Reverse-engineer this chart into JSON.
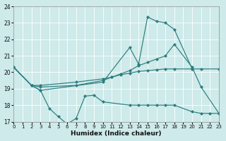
{
  "xlabel": "Humidex (Indice chaleur)",
  "xlim": [
    0,
    23
  ],
  "ylim": [
    17,
    24
  ],
  "yticks": [
    17,
    18,
    19,
    20,
    21,
    22,
    23,
    24
  ],
  "xticks": [
    0,
    1,
    2,
    3,
    4,
    5,
    6,
    7,
    8,
    9,
    10,
    11,
    12,
    13,
    14,
    15,
    16,
    17,
    18,
    19,
    20,
    21,
    22,
    23
  ],
  "bg_color": "#ceeaea",
  "line_color": "#2d7d7d",
  "series": [
    {
      "x": [
        0,
        2,
        3,
        10,
        13,
        14,
        15,
        16,
        17,
        18,
        20
      ],
      "y": [
        20.3,
        19.2,
        18.9,
        19.4,
        21.5,
        20.5,
        23.35,
        23.1,
        23.0,
        22.6,
        20.2
      ]
    },
    {
      "x": [
        0,
        2,
        3,
        7,
        10,
        11,
        12,
        13,
        14,
        15,
        16,
        17,
        18,
        20,
        21,
        23
      ],
      "y": [
        20.3,
        19.2,
        19.1,
        19.2,
        19.5,
        19.7,
        19.9,
        20.1,
        20.4,
        20.6,
        20.8,
        21.0,
        21.7,
        20.3,
        19.1,
        17.5
      ]
    },
    {
      "x": [
        0,
        2,
        3,
        7,
        10,
        11,
        12,
        13,
        14,
        15,
        16,
        17,
        18,
        20,
        21,
        23
      ],
      "y": [
        20.3,
        19.2,
        19.2,
        19.4,
        19.6,
        19.7,
        19.85,
        19.95,
        20.05,
        20.1,
        20.15,
        20.2,
        20.2,
        20.2,
        20.2,
        20.2
      ]
    },
    {
      "x": [
        0,
        2,
        3,
        4,
        5,
        6,
        7,
        8,
        9,
        10,
        13,
        14,
        15,
        16,
        17,
        18,
        20,
        21,
        22,
        23
      ],
      "y": [
        20.3,
        19.2,
        18.9,
        17.8,
        17.3,
        16.85,
        17.2,
        18.55,
        18.6,
        18.2,
        18.0,
        18.0,
        18.0,
        18.0,
        18.0,
        18.0,
        17.6,
        17.5,
        17.5,
        17.5
      ]
    }
  ]
}
